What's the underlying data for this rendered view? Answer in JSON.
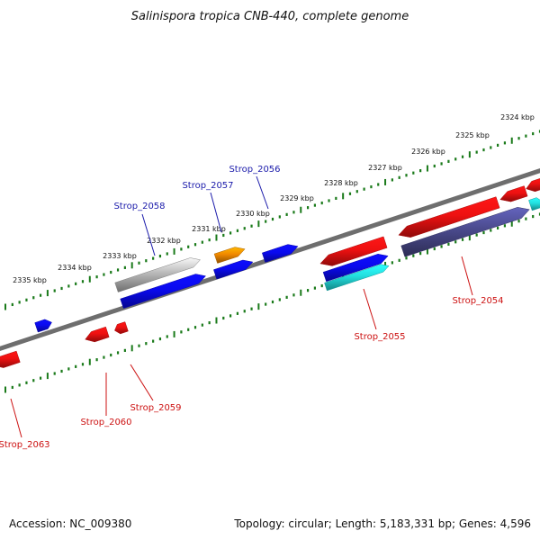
{
  "title": "Salinispora tropica CNB-440, complete genome",
  "footer": {
    "accession": "Accession: NC_009380",
    "summary": "Topology: circular; Length: 5,183,331 bp; Genes: 4,596"
  },
  "colors": {
    "backbone": "#7a7a7a",
    "tick": "#1a7a1a",
    "forward_label": "#1a1aaa",
    "reverse_label": "#cc1111",
    "red": "#ee1111",
    "blue": "#0a0aee",
    "cyan": "#22dddd",
    "orange": "#f08800",
    "gray": "#b8b8b8",
    "slate": "#4a4a8c"
  },
  "scale_labels": [
    "2324 kbp",
    "2325 kbp",
    "2326 kbp",
    "2327 kbp",
    "2328 kbp",
    "2329 kbp",
    "2330 kbp",
    "2331 kbp",
    "2332 kbp",
    "2333 kbp",
    "2334 kbp",
    "2335 kbp"
  ],
  "gene_labels": [
    {
      "text": "Strop_2056",
      "strand": "forward"
    },
    {
      "text": "Strop_2057",
      "strand": "forward"
    },
    {
      "text": "Strop_2058",
      "strand": "forward"
    },
    {
      "text": "Strop_2054",
      "strand": "reverse"
    },
    {
      "text": "Strop_2055",
      "strand": "reverse"
    },
    {
      "text": "Strop_2059",
      "strand": "reverse"
    },
    {
      "text": "Strop_2060",
      "strand": "reverse"
    },
    {
      "text": "Strop_2063",
      "strand": "reverse"
    }
  ]
}
